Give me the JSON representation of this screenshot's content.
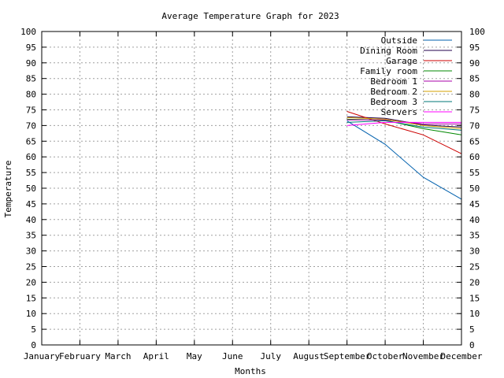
{
  "chart_data": {
    "type": "line",
    "title": "Average Temperature Graph for 2023",
    "xlabel": "Months",
    "ylabel": "Temperature",
    "categories": [
      "January",
      "February",
      "March",
      "April",
      "May",
      "June",
      "July",
      "August",
      "September",
      "October",
      "November",
      "December"
    ],
    "ylim": [
      0,
      100
    ],
    "yticks": [
      0,
      5,
      10,
      15,
      20,
      25,
      30,
      35,
      40,
      45,
      50,
      55,
      60,
      65,
      70,
      75,
      80,
      85,
      90,
      95,
      100
    ],
    "grid": true,
    "legend": "top-right",
    "series": [
      {
        "name": "Outside",
        "color": "#0060ad",
        "values": [
          null,
          null,
          null,
          null,
          null,
          null,
          null,
          null,
          71.5,
          64,
          53.5,
          46.5
        ]
      },
      {
        "name": "Dining Room",
        "color": "#23004c",
        "values": [
          null,
          null,
          null,
          null,
          null,
          null,
          null,
          null,
          72.8,
          72.3,
          70.2,
          69.5
        ]
      },
      {
        "name": "Garage",
        "color": "#cc0000",
        "values": [
          null,
          null,
          null,
          null,
          null,
          null,
          null,
          null,
          74.5,
          70.5,
          67,
          61
        ]
      },
      {
        "name": "Family room",
        "color": "#008800",
        "values": [
          null,
          null,
          null,
          null,
          null,
          null,
          null,
          null,
          72,
          71.7,
          69,
          67
        ]
      },
      {
        "name": "Bedroom 1",
        "color": "#aa00aa",
        "values": [
          null,
          null,
          null,
          null,
          null,
          null,
          null,
          null,
          71.8,
          71.8,
          70.5,
          70.5
        ]
      },
      {
        "name": "Bedroom 2",
        "color": "#d4a000",
        "values": [
          null,
          null,
          null,
          null,
          null,
          null,
          null,
          null,
          72.5,
          72,
          70,
          69
        ]
      },
      {
        "name": "Bedroom 3",
        "color": "#007777",
        "values": [
          null,
          null,
          null,
          null,
          null,
          null,
          null,
          null,
          71,
          71.5,
          69.5,
          68.5
        ]
      },
      {
        "name": "Servers",
        "color": "#ff00ff",
        "values": [
          null,
          null,
          null,
          null,
          null,
          null,
          null,
          null,
          70,
          71,
          71,
          71
        ]
      }
    ]
  }
}
